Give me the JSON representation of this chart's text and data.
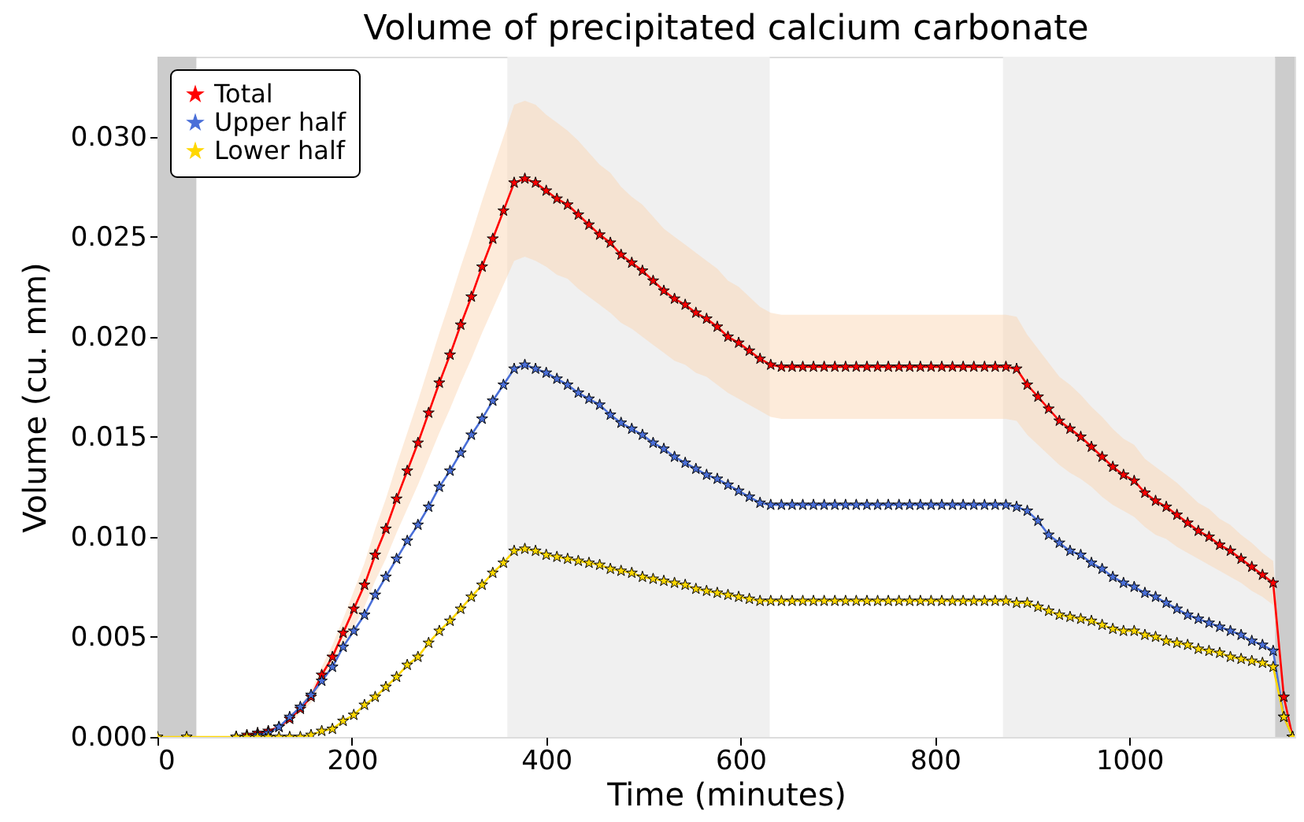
{
  "chart_data": {
    "type": "line",
    "title": "Volume of precipitated calcium carbonate",
    "xlabel": "Time (minutes)",
    "ylabel": "Volume (cu. mm)",
    "x": [
      0,
      30,
      81,
      92,
      103,
      114,
      125,
      136,
      147,
      158,
      169,
      180,
      191,
      202,
      213,
      224,
      235,
      246,
      257,
      268,
      279,
      290,
      301,
      312,
      323,
      334,
      345,
      356,
      367,
      378,
      389,
      400,
      411,
      422,
      433,
      444,
      455,
      466,
      477,
      488,
      499,
      510,
      521,
      532,
      543,
      554,
      565,
      576,
      587,
      598,
      609,
      620,
      631,
      642,
      653,
      664,
      675,
      686,
      697,
      708,
      719,
      730,
      741,
      752,
      763,
      774,
      785,
      796,
      807,
      818,
      829,
      840,
      851,
      862,
      873,
      884,
      895,
      906,
      917,
      928,
      939,
      950,
      961,
      972,
      983,
      994,
      1005,
      1016,
      1027,
      1038,
      1049,
      1060,
      1071,
      1082,
      1093,
      1104,
      1115,
      1126,
      1137,
      1148,
      1159,
      1168
    ],
    "series": [
      {
        "name": "Total",
        "color": "#ff0000",
        "values": [
          null,
          null,
          0,
          0.0001,
          0.0002,
          0.0003,
          0.0005,
          0.0009,
          0.0014,
          0.002,
          0.0031,
          0.004,
          0.0052,
          0.0064,
          0.0076,
          0.0091,
          0.0104,
          0.0119,
          0.0133,
          0.0147,
          0.0162,
          0.0177,
          0.0191,
          0.0206,
          0.022,
          0.0235,
          0.0249,
          0.0263,
          0.0277,
          0.0279,
          0.0277,
          0.0273,
          0.0269,
          0.0266,
          0.0261,
          0.0256,
          0.0251,
          0.0247,
          0.0241,
          0.0237,
          0.0233,
          0.0228,
          0.0223,
          0.0219,
          0.0216,
          0.0212,
          0.0209,
          0.0205,
          0.02,
          0.0197,
          0.0193,
          0.0189,
          0.0186,
          0.0185,
          0.0185,
          0.0185,
          0.0185,
          0.0185,
          0.0185,
          0.0185,
          0.0185,
          0.0185,
          0.0185,
          0.0185,
          0.0185,
          0.0185,
          0.0185,
          0.0185,
          0.0185,
          0.0185,
          0.0185,
          0.0185,
          0.0185,
          0.0185,
          0.0185,
          0.0184,
          0.0176,
          0.017,
          0.0164,
          0.0158,
          0.0154,
          0.015,
          0.0145,
          0.014,
          0.0135,
          0.0131,
          0.0128,
          0.0122,
          0.0118,
          0.0115,
          0.0111,
          0.0107,
          0.0103,
          0.01,
          0.0096,
          0.0093,
          0.0089,
          0.0085,
          0.0081,
          0.0077,
          0.002,
          0
        ],
        "upper": [
          0,
          0,
          0,
          0.0001,
          0.0002,
          0.0004,
          0.0005,
          0.001,
          0.0016,
          0.0023,
          0.0035,
          0.0046,
          0.0059,
          0.0073,
          0.0087,
          0.0104,
          0.0119,
          0.0136,
          0.0152,
          0.0168,
          0.0185,
          0.0202,
          0.0218,
          0.0235,
          0.0251,
          0.0268,
          0.0284,
          0.03,
          0.0316,
          0.0318,
          0.0316,
          0.0311,
          0.0307,
          0.0303,
          0.0298,
          0.0292,
          0.0286,
          0.0282,
          0.0275,
          0.027,
          0.0266,
          0.026,
          0.0254,
          0.025,
          0.0246,
          0.0242,
          0.0238,
          0.0234,
          0.0228,
          0.0225,
          0.022,
          0.0215,
          0.0212,
          0.0211,
          0.0211,
          0.0211,
          0.0211,
          0.0211,
          0.0211,
          0.0211,
          0.0211,
          0.0211,
          0.0211,
          0.0211,
          0.0211,
          0.0211,
          0.0211,
          0.0211,
          0.0211,
          0.0211,
          0.0211,
          0.0211,
          0.0211,
          0.0211,
          0.0211,
          0.021,
          0.0201,
          0.0194,
          0.0187,
          0.018,
          0.0176,
          0.0171,
          0.0165,
          0.016,
          0.0154,
          0.0149,
          0.0146,
          0.0139,
          0.0135,
          0.0131,
          0.0127,
          0.0122,
          0.0117,
          0.0114,
          0.0109,
          0.0106,
          0.0101,
          0.0097,
          0.0092,
          0.0088,
          0.0023,
          0
        ],
        "lower": [
          0,
          0,
          0,
          0,
          0.0002,
          0.0003,
          0.0004,
          0.0007,
          0.0012,
          0.0017,
          0.0027,
          0.0034,
          0.0045,
          0.0055,
          0.0065,
          0.0078,
          0.0089,
          0.0102,
          0.0114,
          0.0126,
          0.0139,
          0.0152,
          0.0164,
          0.0177,
          0.0189,
          0.0202,
          0.0214,
          0.0226,
          0.0238,
          0.024,
          0.0238,
          0.0235,
          0.0231,
          0.0229,
          0.0224,
          0.022,
          0.0216,
          0.0212,
          0.0207,
          0.0204,
          0.02,
          0.0196,
          0.0192,
          0.0188,
          0.0186,
          0.0182,
          0.018,
          0.0176,
          0.0172,
          0.0169,
          0.0166,
          0.0163,
          0.016,
          0.0159,
          0.0159,
          0.0159,
          0.0159,
          0.0159,
          0.0159,
          0.0159,
          0.0159,
          0.0159,
          0.0159,
          0.0159,
          0.0159,
          0.0159,
          0.0159,
          0.0159,
          0.0159,
          0.0159,
          0.0159,
          0.0159,
          0.0159,
          0.0159,
          0.0159,
          0.0158,
          0.0151,
          0.0146,
          0.0141,
          0.0136,
          0.0132,
          0.0129,
          0.0125,
          0.012,
          0.0116,
          0.0113,
          0.011,
          0.0105,
          0.0101,
          0.0099,
          0.0095,
          0.0092,
          0.0089,
          0.0086,
          0.0083,
          0.008,
          0.0077,
          0.0073,
          0.007,
          0.0066,
          0.0017,
          0
        ]
      },
      {
        "name": "Upper half",
        "color": "#4a6fd8",
        "values": [
          null,
          null,
          0,
          0,
          0.0001,
          0.0002,
          0.0005,
          0.001,
          0.0015,
          0.0021,
          0.0028,
          0.0035,
          0.0045,
          0.0053,
          0.0061,
          0.0071,
          0.008,
          0.0089,
          0.0098,
          0.0106,
          0.0115,
          0.0125,
          0.0133,
          0.0142,
          0.0151,
          0.0159,
          0.0168,
          0.0176,
          0.0184,
          0.0186,
          0.0184,
          0.0182,
          0.0179,
          0.0176,
          0.0172,
          0.0169,
          0.0166,
          0.0161,
          0.0157,
          0.0154,
          0.0151,
          0.0147,
          0.0144,
          0.014,
          0.0137,
          0.0134,
          0.0131,
          0.0129,
          0.0126,
          0.0123,
          0.012,
          0.0117,
          0.0116,
          0.0116,
          0.0116,
          0.0116,
          0.0116,
          0.0116,
          0.0116,
          0.0116,
          0.0116,
          0.0116,
          0.0116,
          0.0116,
          0.0116,
          0.0116,
          0.0116,
          0.0116,
          0.0116,
          0.0116,
          0.0116,
          0.0116,
          0.0116,
          0.0116,
          0.0116,
          0.0115,
          0.0113,
          0.0108,
          0.0101,
          0.0097,
          0.0093,
          0.0091,
          0.0087,
          0.0084,
          0.008,
          0.0077,
          0.0075,
          0.0072,
          0.007,
          0.0067,
          0.0064,
          0.0061,
          0.0059,
          0.0057,
          0.0055,
          0.0053,
          0.0051,
          0.0048,
          0.0046,
          0.0043,
          0.001,
          0
        ]
      },
      {
        "name": "Lower half",
        "color": "#ffd700",
        "values": [
          0,
          0,
          0,
          0,
          0,
          0,
          0,
          0,
          0,
          0.0001,
          0.0003,
          0.0004,
          0.0008,
          0.0011,
          0.0016,
          0.002,
          0.0025,
          0.003,
          0.0036,
          0.004,
          0.0047,
          0.0053,
          0.0058,
          0.0064,
          0.007,
          0.0076,
          0.0082,
          0.0087,
          0.0093,
          0.0094,
          0.0093,
          0.0091,
          0.009,
          0.0089,
          0.0088,
          0.0087,
          0.0086,
          0.0084,
          0.0083,
          0.0082,
          0.008,
          0.0079,
          0.0078,
          0.0077,
          0.0076,
          0.0074,
          0.0073,
          0.0072,
          0.0071,
          0.007,
          0.0069,
          0.0068,
          0.0068,
          0.0068,
          0.0068,
          0.0068,
          0.0068,
          0.0068,
          0.0068,
          0.0068,
          0.0068,
          0.0068,
          0.0068,
          0.0068,
          0.0068,
          0.0068,
          0.0068,
          0.0068,
          0.0068,
          0.0068,
          0.0068,
          0.0068,
          0.0068,
          0.0068,
          0.0068,
          0.0067,
          0.0067,
          0.0065,
          0.0063,
          0.0061,
          0.006,
          0.0059,
          0.0058,
          0.0056,
          0.0054,
          0.0053,
          0.0053,
          0.0051,
          0.005,
          0.0048,
          0.0047,
          0.0046,
          0.0044,
          0.0043,
          0.0042,
          0.004,
          0.0039,
          0.0038,
          0.0037,
          0.0035,
          0.001,
          0
        ]
      }
    ],
    "bands": [
      {
        "axis": "x",
        "from": 0,
        "to": 40,
        "color": "#cccccc"
      },
      {
        "axis": "x",
        "from": 360,
        "to": 630,
        "color": "#f0f0f0"
      },
      {
        "axis": "x",
        "from": 870,
        "to": 1150,
        "color": "#f0f0f0"
      },
      {
        "axis": "x",
        "from": 1150,
        "to": 1170,
        "color": "#cccccc"
      }
    ],
    "xlim": [
      0,
      1170
    ],
    "xticks": [
      0,
      200,
      400,
      600,
      800,
      1000
    ],
    "ylim": [
      0,
      0.034
    ],
    "yticks": [
      {
        "value": 0,
        "label": "0.000"
      },
      {
        "value": 0.005,
        "label": "0.005"
      },
      {
        "value": 0.01,
        "label": "0.010"
      },
      {
        "value": 0.015,
        "label": "0.015"
      },
      {
        "value": 0.02,
        "label": "0.020"
      },
      {
        "value": 0.025,
        "label": "0.025"
      },
      {
        "value": 0.03,
        "label": "0.030"
      }
    ],
    "grid": false,
    "legend": "top left",
    "marker": "star",
    "line_style": "solid"
  }
}
